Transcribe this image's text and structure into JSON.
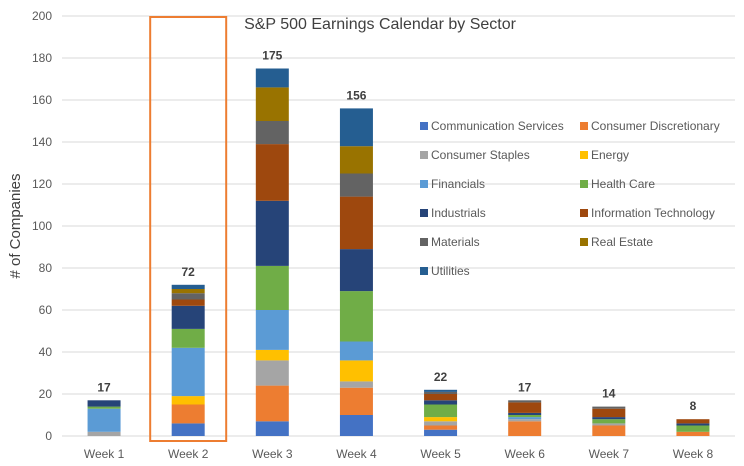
{
  "chart_data": {
    "type": "bar",
    "stacked": true,
    "title": "S&P 500 Earnings Calendar by Sector",
    "xlabel": "",
    "ylabel": "# of Companies",
    "ylim": [
      0,
      200
    ],
    "yticks": [
      0,
      20,
      40,
      60,
      80,
      100,
      120,
      140,
      160,
      180,
      200
    ],
    "grid": true,
    "legend_position": "right",
    "highlight_category": "Week 2",
    "highlight_color": "#ed7d31",
    "categories": [
      "Week 1",
      "Week 2",
      "Week 3",
      "Week 4",
      "Week 5",
      "Week 6",
      "Week 7",
      "Week 8"
    ],
    "totals": [
      17,
      72,
      175,
      156,
      22,
      17,
      14,
      8
    ],
    "series": [
      {
        "name": "Communication Services",
        "color": "#4472c4",
        "values": [
          0,
          6,
          7,
          10,
          3,
          0,
          0,
          0
        ]
      },
      {
        "name": "Consumer Discretionary",
        "color": "#ed7d31",
        "values": [
          0,
          9,
          17,
          13,
          2,
          7,
          5,
          2
        ]
      },
      {
        "name": "Consumer Staples",
        "color": "#a5a5a5",
        "values": [
          2,
          0,
          12,
          3,
          2,
          1,
          1,
          0
        ]
      },
      {
        "name": "Energy",
        "color": "#ffc000",
        "values": [
          0,
          4,
          5,
          10,
          2,
          0,
          0,
          0
        ]
      },
      {
        "name": "Financials",
        "color": "#5b9bd5",
        "values": [
          11,
          23,
          19,
          9,
          0,
          1,
          0,
          0
        ]
      },
      {
        "name": "Health Care",
        "color": "#70ad47",
        "values": [
          1,
          9,
          21,
          24,
          6,
          1,
          2,
          3
        ]
      },
      {
        "name": "Industrials",
        "color": "#264478",
        "values": [
          3,
          11,
          31,
          20,
          2,
          1,
          1,
          1
        ]
      },
      {
        "name": "Information Technology",
        "color": "#9e480e",
        "values": [
          0,
          3,
          27,
          25,
          3,
          5,
          4,
          2
        ]
      },
      {
        "name": "Materials",
        "color": "#636363",
        "values": [
          0,
          3,
          11,
          11,
          1,
          1,
          1,
          0
        ]
      },
      {
        "name": "Real Estate",
        "color": "#997300",
        "values": [
          0,
          2,
          16,
          13,
          0,
          0,
          0,
          0
        ]
      },
      {
        "name": "Utilities",
        "color": "#255e91",
        "values": [
          0,
          2,
          9,
          18,
          1,
          0,
          0,
          0
        ]
      }
    ]
  }
}
